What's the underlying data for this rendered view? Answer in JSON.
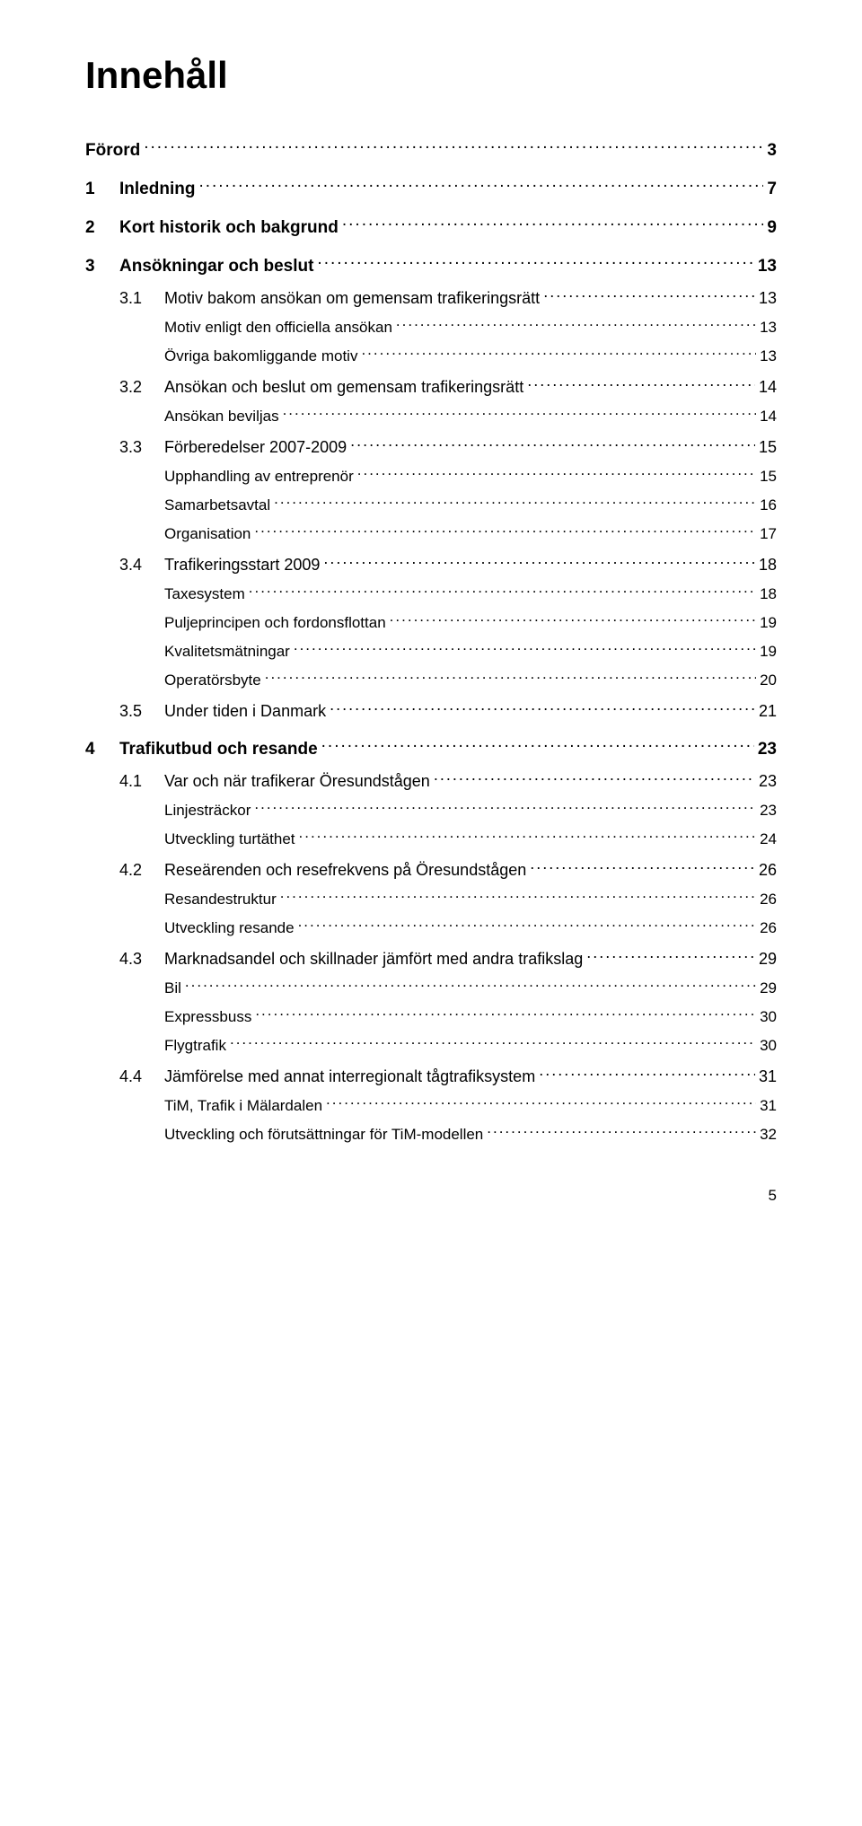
{
  "title": "Innehåll",
  "page_number": "5",
  "toc": [
    {
      "level": 1,
      "num": "",
      "text": "Förord",
      "page": "3"
    },
    {
      "level": 1,
      "num": "1",
      "text": "Inledning",
      "page": "7"
    },
    {
      "level": 1,
      "num": "2",
      "text": "Kort historik och bakgrund",
      "page": "9"
    },
    {
      "level": 1,
      "num": "3",
      "text": "Ansökningar och beslut",
      "page": "13"
    },
    {
      "level": 2,
      "num": "3.1",
      "text": "Motiv bakom ansökan om gemensam trafikeringsrätt",
      "page": "13"
    },
    {
      "level": 3,
      "num": "",
      "text": "Motiv enligt den officiella ansökan",
      "page": "13"
    },
    {
      "level": 3,
      "num": "",
      "text": "Övriga bakomliggande motiv",
      "page": "13"
    },
    {
      "level": 2,
      "num": "3.2",
      "text": "Ansökan och beslut om gemensam trafikeringsrätt",
      "page": "14"
    },
    {
      "level": 3,
      "num": "",
      "text": "Ansökan beviljas",
      "page": "14"
    },
    {
      "level": 2,
      "num": "3.3",
      "text": "Förberedelser 2007-2009",
      "page": "15"
    },
    {
      "level": 3,
      "num": "",
      "text": "Upphandling av entreprenör",
      "page": "15"
    },
    {
      "level": 3,
      "num": "",
      "text": "Samarbetsavtal",
      "page": "16"
    },
    {
      "level": 3,
      "num": "",
      "text": "Organisation",
      "page": "17"
    },
    {
      "level": 2,
      "num": "3.4",
      "text": "Trafikeringsstart 2009",
      "page": "18"
    },
    {
      "level": 3,
      "num": "",
      "text": "Taxesystem",
      "page": "18"
    },
    {
      "level": 3,
      "num": "",
      "text": "Puljeprincipen och fordonsflottan",
      "page": "19"
    },
    {
      "level": 3,
      "num": "",
      "text": "Kvalitetsmätningar",
      "page": "19"
    },
    {
      "level": 3,
      "num": "",
      "text": "Operatörsbyte",
      "page": "20"
    },
    {
      "level": 2,
      "num": "3.5",
      "text": "Under tiden i Danmark",
      "page": "21"
    },
    {
      "level": 1,
      "num": "4",
      "text": "Trafikutbud och resande",
      "page": "23"
    },
    {
      "level": 2,
      "num": "4.1",
      "text": "Var och när trafikerar Öresundstågen",
      "page": "23"
    },
    {
      "level": 3,
      "num": "",
      "text": "Linjesträckor",
      "page": "23"
    },
    {
      "level": 3,
      "num": "",
      "text": "Utveckling turtäthet",
      "page": "24"
    },
    {
      "level": 2,
      "num": "4.2",
      "text": "Reseärenden och resefrekvens på Öresundstågen",
      "page": "26"
    },
    {
      "level": 3,
      "num": "",
      "text": "Resandestruktur",
      "page": "26"
    },
    {
      "level": 3,
      "num": "",
      "text": "Utveckling resande",
      "page": "26"
    },
    {
      "level": 2,
      "num": "4.3",
      "text": "Marknadsandel och skillnader jämfört med andra trafikslag",
      "page": "29"
    },
    {
      "level": 3,
      "num": "",
      "text": "Bil",
      "page": "29"
    },
    {
      "level": 3,
      "num": "",
      "text": "Expressbuss",
      "page": "30"
    },
    {
      "level": 3,
      "num": "",
      "text": "Flygtrafik",
      "page": "30"
    },
    {
      "level": 2,
      "num": "4.4",
      "text": "Jämförelse med annat interregionalt tågtrafiksystem",
      "page": "31"
    },
    {
      "level": 3,
      "num": "",
      "text": "TiM, Trafik i Mälardalen",
      "page": "31"
    },
    {
      "level": 3,
      "num": "",
      "text": "Utveckling och förutsättningar för TiM-modellen",
      "page": "32"
    }
  ]
}
